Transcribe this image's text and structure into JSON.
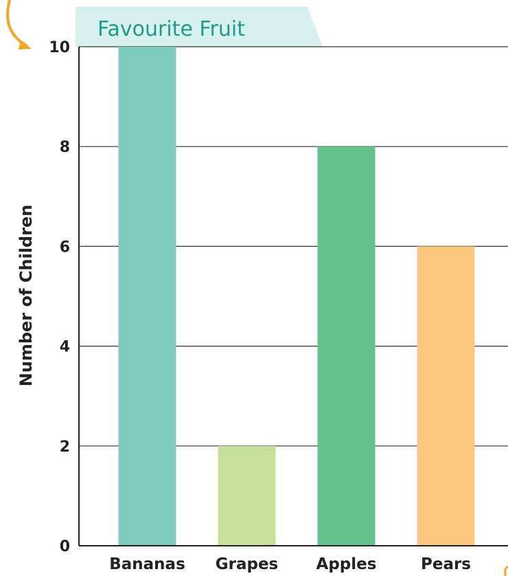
{
  "chart_data": {
    "type": "bar",
    "title": "Favourite Fruit",
    "xlabel": "",
    "ylabel": "Number of Children",
    "categories": [
      "Bananas",
      "Grapes",
      "Apples",
      "Pears"
    ],
    "values": [
      10,
      2,
      8,
      6
    ],
    "bar_colors": [
      "#7ccbbd",
      "#c6df9a",
      "#66c28c",
      "#fbc97d"
    ],
    "ylim": [
      0,
      10
    ],
    "yticks": [
      0,
      2,
      4,
      6,
      8,
      10
    ],
    "grid": true,
    "legend": "none",
    "title_color": "#1f9a8c",
    "title_tab_color": "#d7f1ee",
    "accent_arrow_color": "#f5a623"
  }
}
